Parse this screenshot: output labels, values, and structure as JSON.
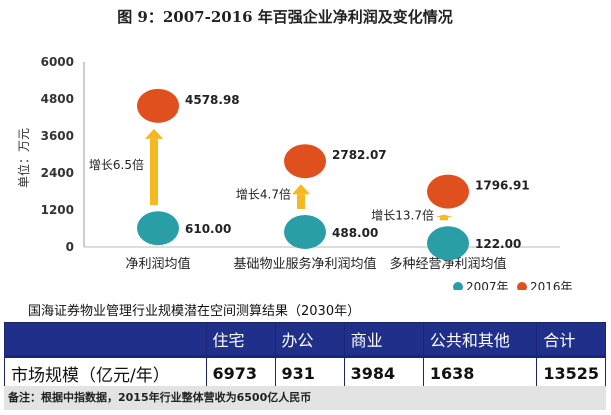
{
  "chart_data": {
    "type": "scatter",
    "title": "图 9：2007-2016 年百强企业净利润及变化情况",
    "ylabel": "单位：万元",
    "ylim": [
      0,
      6000
    ],
    "yticks": [
      0,
      1200,
      2400,
      3600,
      4800,
      6000
    ],
    "categories": [
      "净利润均值",
      "基础物业服务净利润均值",
      "多种经营净利润均值"
    ],
    "series": [
      {
        "name": "2007年",
        "color": "#2a9ea6",
        "values": [
          610.0,
          488.0,
          122.0
        ],
        "labels": [
          "610.00",
          "488.00",
          "122.00"
        ]
      },
      {
        "name": "2016年",
        "color": "#e0501e",
        "values": [
          4578.98,
          2782.07,
          1796.91
        ],
        "labels": [
          "4578.98",
          "2782.07",
          "1796.91"
        ]
      }
    ],
    "growth_labels": [
      "增长6.5倍",
      "增长4.7倍",
      "增长13.7倍"
    ],
    "arrow_color": "#f5b820",
    "legend": "bottom-right"
  },
  "table": {
    "title": "国海证券物业管理行业规模潜在空间测算结果（2030年）",
    "headers": [
      "",
      "住宅",
      "办公",
      "商业",
      "公共和其他",
      "合计"
    ],
    "row": {
      "label": "市场规模（亿元/年）",
      "values": [
        "6973",
        "931",
        "3984",
        "1638",
        "13525"
      ]
    },
    "note": "备注：根据中指数据，2015年行业整体营收为6500亿人民币",
    "header_color": "#1f2f8a"
  }
}
